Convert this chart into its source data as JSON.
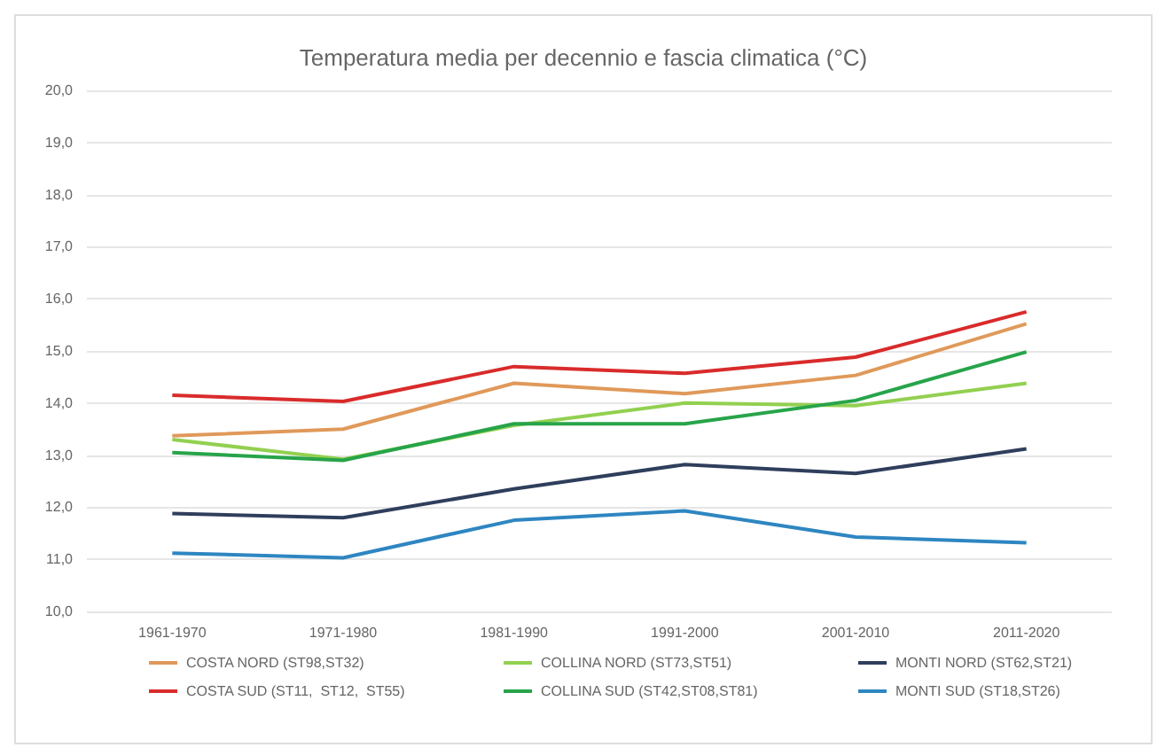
{
  "chart_data": {
    "type": "line",
    "title": "Temperatura media per decennio e fascia climatica (°C)",
    "categories": [
      "1961-1970",
      "1971-1980",
      "1981-1990",
      "1991-2000",
      "2001-2010",
      "2011-2020"
    ],
    "series": [
      {
        "name": "COSTA NORD (ST98,ST32)",
        "color": "#e0995a",
        "values": [
          13.37,
          13.5,
          14.38,
          14.18,
          14.53,
          15.52
        ]
      },
      {
        "name": "COLLINA NORD (ST73,ST51)",
        "color": "#92d050",
        "values": [
          13.3,
          12.92,
          13.57,
          14.0,
          13.95,
          14.38
        ]
      },
      {
        "name": "MONTI NORD (ST62,ST21)",
        "color": "#2f3e5c",
        "values": [
          11.88,
          11.8,
          12.35,
          12.82,
          12.65,
          13.12
        ]
      },
      {
        "name": "COSTA SUD (ST11,  ST12,  ST55)",
        "color": "#d92b2b",
        "values": [
          14.15,
          14.03,
          14.7,
          14.57,
          14.88,
          15.75
        ]
      },
      {
        "name": "COLLINA SUD (ST42,ST08,ST81)",
        "color": "#27a44a",
        "values": [
          13.05,
          12.9,
          13.6,
          13.6,
          14.05,
          14.98
        ]
      },
      {
        "name": "MONTI SUD (ST18,ST26)",
        "color": "#2e86c1",
        "values": [
          11.12,
          11.03,
          11.75,
          11.93,
          11.43,
          11.32
        ]
      }
    ],
    "ylim": [
      10,
      20
    ],
    "yticks": [
      {
        "value": 10,
        "label": "10,0"
      },
      {
        "value": 11,
        "label": "11,0"
      },
      {
        "value": 12,
        "label": "12,0"
      },
      {
        "value": 13,
        "label": "13,0"
      },
      {
        "value": 14,
        "label": "14,0"
      },
      {
        "value": 15,
        "label": "15,0"
      },
      {
        "value": 16,
        "label": "16,0"
      },
      {
        "value": 17,
        "label": "17,0"
      },
      {
        "value": 18,
        "label": "18,0"
      },
      {
        "value": 19,
        "label": "19,0"
      },
      {
        "value": 20,
        "label": "20,0"
      }
    ],
    "grid": "y",
    "legend": "bottom",
    "marker": "none",
    "line_style": "solid"
  }
}
